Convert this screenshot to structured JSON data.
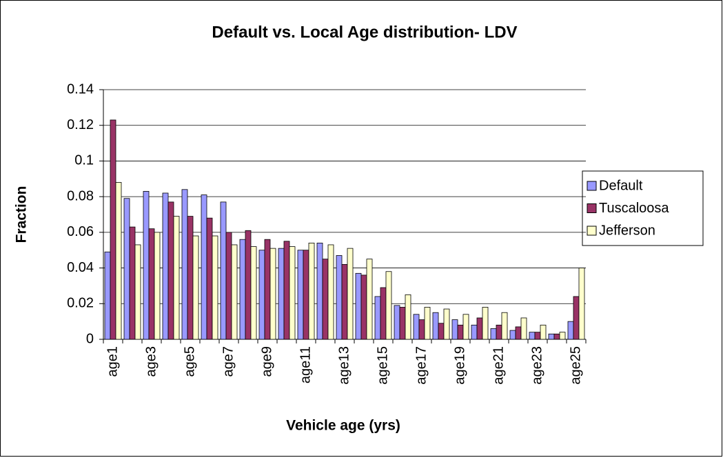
{
  "chart_data": {
    "type": "bar",
    "title": "Default vs. Local Age distribution- LDV",
    "x_label": "Vehicle age (yrs)",
    "y_label": "Fraction",
    "categories": [
      "age1",
      null,
      "age3",
      null,
      "age5",
      null,
      "age7",
      null,
      "age9",
      null,
      "age11",
      null,
      "age13",
      null,
      "age15",
      null,
      "age17",
      null,
      "age19",
      null,
      "age21",
      null,
      "age23",
      null,
      "age25"
    ],
    "series": [
      {
        "name": "Default",
        "color": "#9999ff",
        "values": [
          0.049,
          0.079,
          0.083,
          0.082,
          0.084,
          0.081,
          0.077,
          0.056,
          0.05,
          0.051,
          0.05,
          0.054,
          0.047,
          0.037,
          0.024,
          0.019,
          0.014,
          0.015,
          0.011,
          0.008,
          0.006,
          0.005,
          0.004,
          0.003,
          0.01
        ]
      },
      {
        "name": "Tuscaloosa",
        "color": "#993366",
        "values": [
          0.123,
          0.063,
          0.062,
          0.077,
          0.069,
          0.068,
          0.06,
          0.061,
          0.056,
          0.055,
          0.05,
          0.045,
          0.042,
          0.036,
          0.029,
          0.018,
          0.011,
          0.009,
          0.008,
          0.012,
          0.008,
          0.007,
          0.004,
          0.003,
          0.024
        ]
      },
      {
        "name": "Jefferson",
        "color": "#ffffcc",
        "values": [
          0.088,
          0.053,
          0.06,
          0.069,
          0.058,
          0.058,
          0.053,
          0.052,
          0.051,
          0.052,
          0.054,
          0.053,
          0.051,
          0.045,
          0.038,
          0.025,
          0.018,
          0.017,
          0.014,
          0.018,
          0.015,
          0.012,
          0.008,
          0.004,
          0.04
        ]
      }
    ],
    "ylim": [
      0,
      0.14
    ],
    "yticks": [
      0,
      0.02,
      0.04,
      0.06,
      0.08,
      0.1,
      0.12,
      0.14
    ],
    "grid": true,
    "legend": "right"
  }
}
